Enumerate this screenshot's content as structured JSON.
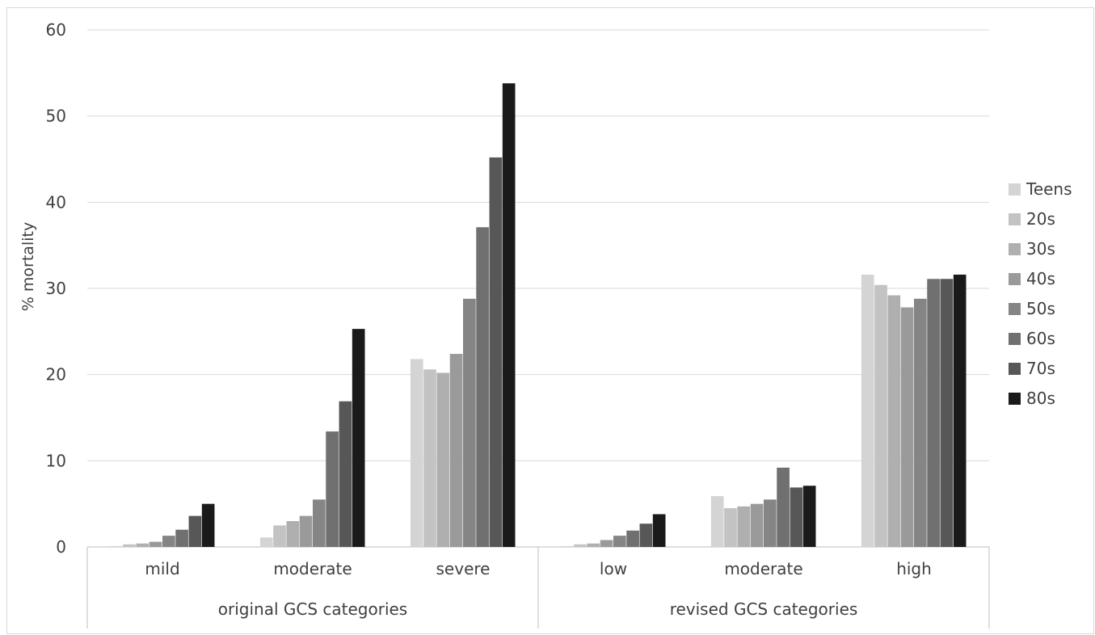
{
  "chart_data": {
    "type": "bar",
    "ylabel": "% mortality",
    "ylim": [
      0,
      60
    ],
    "yticks": [
      0,
      10,
      20,
      30,
      40,
      50,
      60
    ],
    "grid": true,
    "legend_position": "right",
    "groups": [
      {
        "label": "original GCS categories",
        "categories": [
          "mild",
          "moderate",
          "severe"
        ]
      },
      {
        "label": "revised GCS categories",
        "categories": [
          "low",
          "moderate",
          "high"
        ]
      }
    ],
    "categories": [
      "mild",
      "moderate",
      "severe",
      "low",
      "moderate",
      "high"
    ],
    "series": [
      {
        "name": "Teens",
        "color": "#d4d4d4",
        "values": [
          0.1,
          1.1,
          21.8,
          0.1,
          5.9,
          31.6
        ]
      },
      {
        "name": "20s",
        "color": "#c3c3c3",
        "values": [
          0.3,
          2.5,
          20.6,
          0.3,
          4.5,
          30.4
        ]
      },
      {
        "name": "30s",
        "color": "#afafaf",
        "values": [
          0.4,
          3.0,
          20.2,
          0.4,
          4.7,
          29.2
        ]
      },
      {
        "name": "40s",
        "color": "#9a9a9a",
        "values": [
          0.6,
          3.6,
          22.4,
          0.8,
          5.0,
          27.8
        ]
      },
      {
        "name": "50s",
        "color": "#858585",
        "values": [
          1.3,
          5.5,
          28.8,
          1.3,
          5.5,
          28.8
        ]
      },
      {
        "name": "60s",
        "color": "#707070",
        "values": [
          2.0,
          13.4,
          37.1,
          1.9,
          9.2,
          31.1
        ]
      },
      {
        "name": "70s",
        "color": "#575757",
        "values": [
          3.6,
          16.9,
          45.2,
          2.7,
          6.9,
          31.1
        ]
      },
      {
        "name": "80s",
        "color": "#1a1a1a",
        "values": [
          5.0,
          25.3,
          53.8,
          3.8,
          7.1,
          31.6
        ]
      }
    ]
  }
}
